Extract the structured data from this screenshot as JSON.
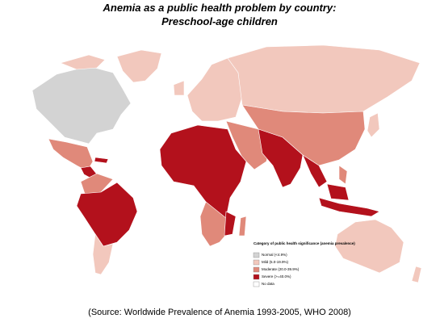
{
  "header": {
    "title": [
      "Anemia as a public health problem by country:",
      "Preschool-age children"
    ]
  },
  "legend": {
    "title": "Category of public health significance (anemia prevalence)",
    "items": [
      {
        "label": "Normal (<4.9%)",
        "color": "#d3d3d3"
      },
      {
        "label": "Mild (5.0-19.9%)",
        "color": "#f2c8bd"
      },
      {
        "label": "Moderate (20.0-39.9%)",
        "color": "#e0897a"
      },
      {
        "label": "Severe (>=40.0%)",
        "color": "#b3111c"
      },
      {
        "label": "No data",
        "color": "#ffffff"
      }
    ]
  },
  "footer": {
    "source": "(Source: Worldwide Prevalence of Anemia 1993-2005, WHO 2008)"
  }
}
